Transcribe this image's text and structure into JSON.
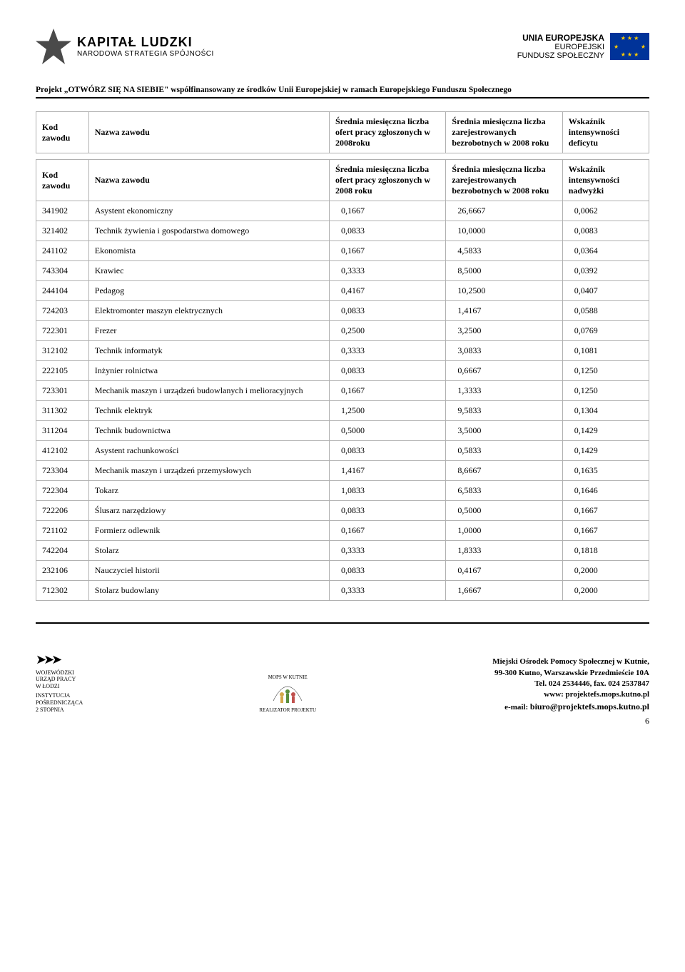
{
  "header": {
    "logo_left_title": "KAPITAŁ LUDZKI",
    "logo_left_sub": "NARODOWA STRATEGIA SPÓJNOŚCI",
    "logo_right_line1": "UNIA EUROPEJSKA",
    "logo_right_line2": "EUROPEJSKI",
    "logo_right_line3": "FUNDUSZ SPOŁECZNY"
  },
  "project_line": "Projekt „OTWÓRZ SIĘ NA SIEBIE\" współfinansowany ze środków Unii Europejskiej w ramach Europejskiego Funduszu Społecznego",
  "table1_headers": {
    "kod": "Kod zawodu",
    "nazwa": "Nazwa zawodu",
    "ofert": "Średnia miesięczna liczba ofert pracy zgłoszonych w 2008roku",
    "bezrob": "Średnia miesięczna liczba zarejestrowanych bezrobotnych w 2008 roku",
    "wsk": "Wskaźnik intensywności deficytu"
  },
  "table2_headers": {
    "kod": "Kod zawodu",
    "nazwa": "Nazwa zawodu",
    "ofert": "Średnia miesięczna liczba ofert pracy zgłoszonych w 2008 roku",
    "bezrob": "Średnia miesięczna liczba zarejestrowanych bezrobotnych w 2008 roku",
    "wsk": "Wskaźnik intensywności nadwyżki"
  },
  "rows": [
    {
      "kod": "341902",
      "nazwa": "Asystent ekonomiczny",
      "v1": "0,1667",
      "v2": "26,6667",
      "v3": "0,0062"
    },
    {
      "kod": "321402",
      "nazwa": "Technik żywienia i gospodarstwa domowego",
      "v1": "0,0833",
      "v2": "10,0000",
      "v3": "0,0083"
    },
    {
      "kod": "241102",
      "nazwa": "Ekonomista",
      "v1": "0,1667",
      "v2": "4,5833",
      "v3": "0,0364"
    },
    {
      "kod": "743304",
      "nazwa": "Krawiec",
      "v1": "0,3333",
      "v2": "8,5000",
      "v3": "0,0392"
    },
    {
      "kod": "244104",
      "nazwa": "Pedagog",
      "v1": "0,4167",
      "v2": "10,2500",
      "v3": "0,0407"
    },
    {
      "kod": "724203",
      "nazwa": "Elektromonter maszyn elektrycznych",
      "v1": "0,0833",
      "v2": "1,4167",
      "v3": "0,0588"
    },
    {
      "kod": "722301",
      "nazwa": "Frezer",
      "v1": "0,2500",
      "v2": "3,2500",
      "v3": "0,0769"
    },
    {
      "kod": "312102",
      "nazwa": "Technik informatyk",
      "v1": "0,3333",
      "v2": "3,0833",
      "v3": "0,1081"
    },
    {
      "kod": "222105",
      "nazwa": "Inżynier rolnictwa",
      "v1": "0,0833",
      "v2": "0,6667",
      "v3": "0,1250"
    },
    {
      "kod": "723301",
      "nazwa": "Mechanik maszyn i urządzeń budowlanych i melioracyjnych",
      "v1": "0,1667",
      "v2": "1,3333",
      "v3": "0,1250"
    },
    {
      "kod": "311302",
      "nazwa": "Technik elektryk",
      "v1": "1,2500",
      "v2": "9,5833",
      "v3": "0,1304"
    },
    {
      "kod": "311204",
      "nazwa": "Technik budownictwa",
      "v1": "0,5000",
      "v2": "3,5000",
      "v3": "0,1429"
    },
    {
      "kod": "412102",
      "nazwa": "Asystent rachunkowości",
      "v1": "0,0833",
      "v2": "0,5833",
      "v3": "0,1429"
    },
    {
      "kod": "723304",
      "nazwa": "Mechanik maszyn i urządzeń przemysłowych",
      "v1": "1,4167",
      "v2": "8,6667",
      "v3": "0,1635"
    },
    {
      "kod": "722304",
      "nazwa": "Tokarz",
      "v1": "1,0833",
      "v2": "6,5833",
      "v3": "0,1646"
    },
    {
      "kod": "722206",
      "nazwa": "Ślusarz narzędziowy",
      "v1": "0,0833",
      "v2": "0,5000",
      "v3": "0,1667"
    },
    {
      "kod": "721102",
      "nazwa": "Formierz odlewnik",
      "v1": "0,1667",
      "v2": "1,0000",
      "v3": "0,1667"
    },
    {
      "kod": "742204",
      "nazwa": "Stolarz",
      "v1": "0,3333",
      "v2": "1,8333",
      "v3": "0,1818"
    },
    {
      "kod": "232106",
      "nazwa": "Nauczyciel historii",
      "v1": "0,0833",
      "v2": "0,4167",
      "v3": "0,2000"
    },
    {
      "kod": "712302",
      "nazwa": "Stolarz budowlany",
      "v1": "0,3333",
      "v2": "1,6667",
      "v3": "0,2000"
    }
  ],
  "footer": {
    "wup_line1": "WOJEWÓDZKI",
    "wup_line2": "URZĄD PRACY",
    "wup_line3": "W ŁODZI",
    "wup_line4": "INSTYTUCJA",
    "wup_line5": "POŚREDNICZĄCA",
    "wup_line6": "2 STOPNIA",
    "center_label": "REALIZATOR PROJEKTU",
    "mops_top": "MOPS W KUTNIE",
    "addr1": "Miejski Ośrodek Pomocy Społecznej w Kutnie,",
    "addr2": "99-300 Kutno, Warszawskie Przedmieście 10A",
    "addr3": "Tel. 024 2534446, fax. 024 2537847",
    "addr4": "www: projektefs.mops.kutno.pl",
    "addr5_label": "e-mail: ",
    "addr5_email": "biuro@projektefs.mops.kutno.pl",
    "page": "6"
  }
}
